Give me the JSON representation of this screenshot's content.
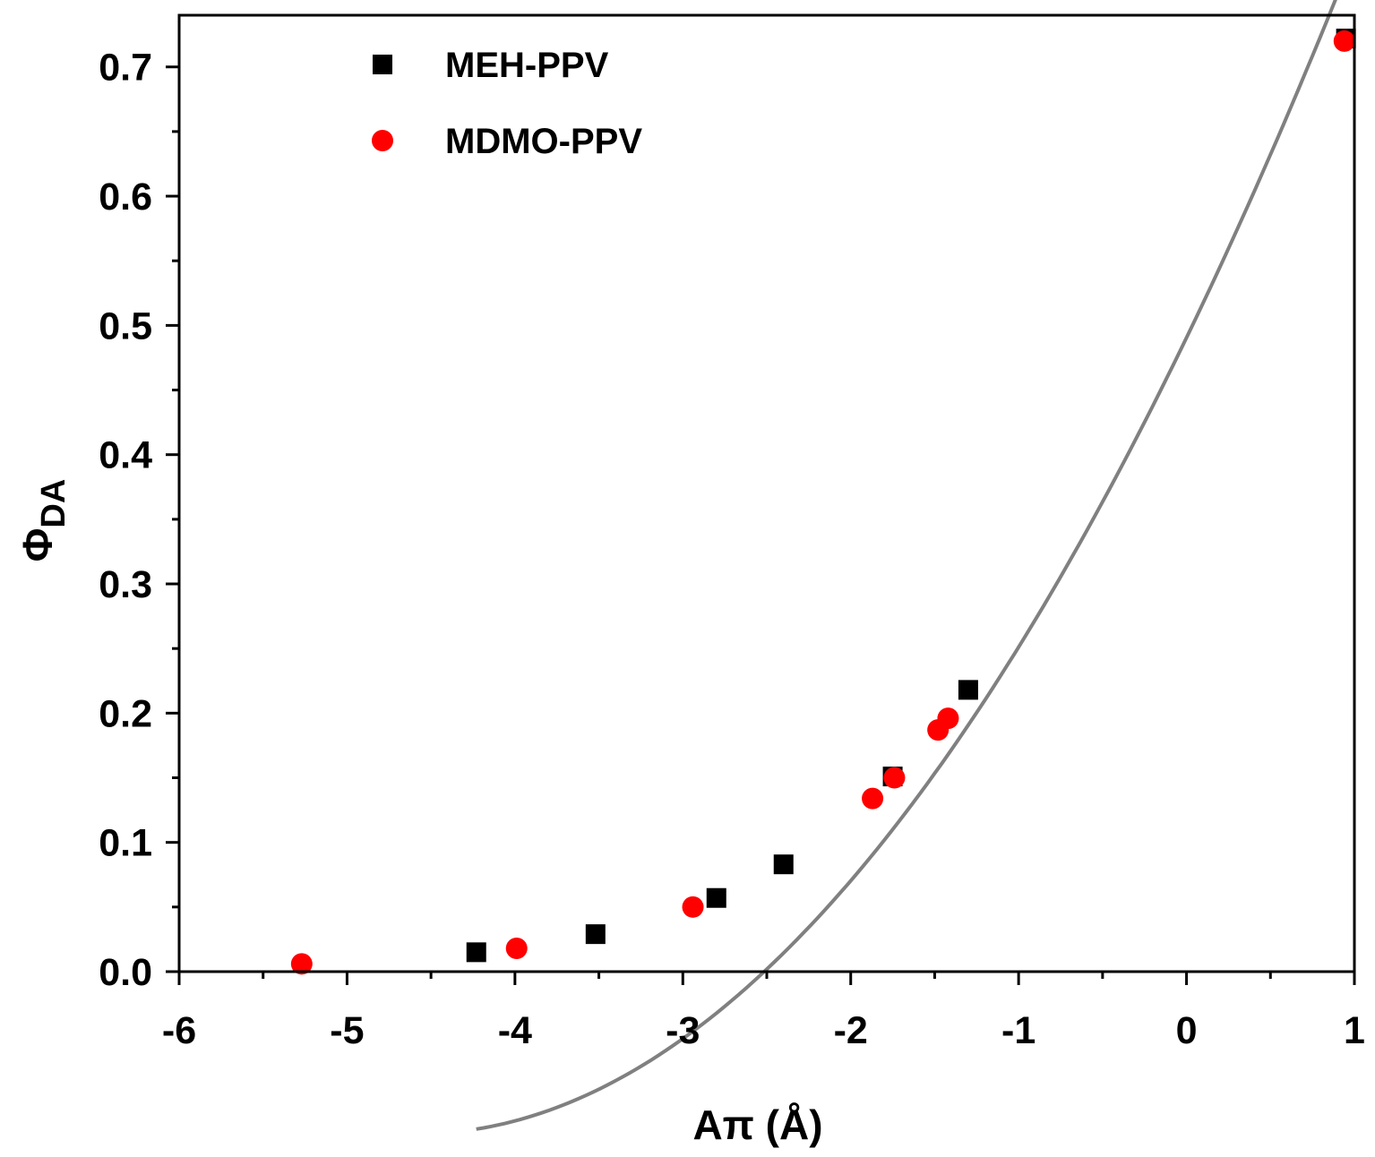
{
  "chart_data": {
    "type": "scatter",
    "xlabel": "Aπ (Å)",
    "ylabel_main": "Φ",
    "ylabel_sub": "DA",
    "xlim": [
      -6,
      1
    ],
    "ylim": [
      0,
      0.74
    ],
    "xticks": [
      -6,
      -5,
      -4,
      -3,
      -2,
      -1,
      0,
      1
    ],
    "xtick_labels": [
      "-6",
      "-5",
      "-4",
      "-3",
      "-2",
      "-1",
      "0",
      "1"
    ],
    "yticks": [
      0,
      0.1,
      0.2,
      0.3,
      0.4,
      0.5,
      0.6,
      0.7
    ],
    "ytick_labels": [
      "0.0",
      "0.1",
      "0.2",
      "0.3",
      "0.4",
      "0.5",
      "0.6",
      "0.7"
    ],
    "legend_position": "top-left",
    "series": [
      {
        "name": "MEH-PPV",
        "marker": "square",
        "color": "#000000",
        "points": [
          [
            -4.23,
            0.015
          ],
          [
            -3.52,
            0.029
          ],
          [
            -2.8,
            0.057
          ],
          [
            -2.4,
            0.083
          ],
          [
            -1.75,
            0.151
          ],
          [
            -1.3,
            0.218
          ],
          [
            0.95,
            0.722
          ]
        ]
      },
      {
        "name": "MDMO-PPV",
        "marker": "circle",
        "color": "#ff0000",
        "points": [
          [
            -5.27,
            0.006
          ],
          [
            -3.99,
            0.018
          ],
          [
            -2.94,
            0.05
          ],
          [
            -1.87,
            0.134
          ],
          [
            -1.74,
            0.15
          ],
          [
            -1.48,
            0.187
          ],
          [
            -1.42,
            0.196
          ],
          [
            0.94,
            0.72
          ]
        ]
      }
    ],
    "fit_curve": {
      "name": "fit",
      "color": "#808080",
      "x_range": [
        -4.23,
        0.97
      ],
      "coefficients": [
        0.4905,
        0.2687,
        0.0293
      ]
    }
  }
}
